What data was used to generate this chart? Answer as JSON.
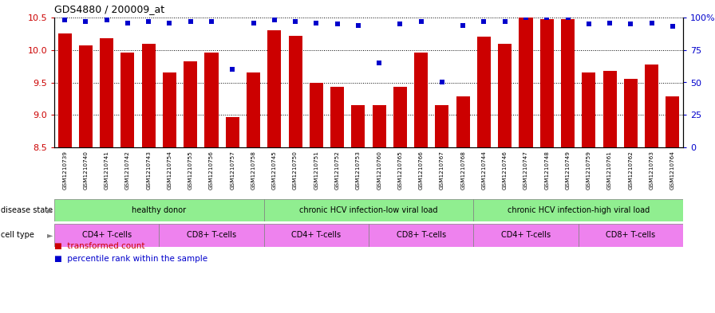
{
  "title": "GDS4880 / 200009_at",
  "samples": [
    "GSM1210739",
    "GSM1210740",
    "GSM1210741",
    "GSM1210742",
    "GSM1210743",
    "GSM1210754",
    "GSM1210755",
    "GSM1210756",
    "GSM1210757",
    "GSM1210758",
    "GSM1210745",
    "GSM1210750",
    "GSM1210751",
    "GSM1210752",
    "GSM1210753",
    "GSM1210760",
    "GSM1210765",
    "GSM1210766",
    "GSM1210767",
    "GSM1210768",
    "GSM1210744",
    "GSM1210746",
    "GSM1210747",
    "GSM1210748",
    "GSM1210749",
    "GSM1210759",
    "GSM1210761",
    "GSM1210762",
    "GSM1210763",
    "GSM1210764"
  ],
  "bar_values": [
    10.25,
    10.07,
    10.18,
    9.96,
    10.1,
    9.65,
    9.83,
    9.96,
    8.97,
    9.65,
    10.3,
    10.22,
    9.5,
    9.43,
    9.15,
    9.15,
    9.43,
    9.96,
    9.15,
    9.28,
    10.2,
    10.1,
    10.5,
    10.48,
    10.48,
    9.65,
    9.68,
    9.55,
    9.78,
    9.28
  ],
  "percentile_values": [
    98,
    97,
    98,
    96,
    97,
    96,
    97,
    97,
    60,
    96,
    98,
    97,
    96,
    95,
    94,
    65,
    95,
    97,
    50,
    94,
    97,
    97,
    100,
    100,
    100,
    95,
    96,
    95,
    96,
    93
  ],
  "bar_color": "#CC0000",
  "dot_color": "#0000CC",
  "ylim_left": [
    8.5,
    10.5
  ],
  "ylim_right": [
    0,
    100
  ],
  "yticks_left": [
    8.5,
    9.0,
    9.5,
    10.0,
    10.5
  ],
  "yticks_right": [
    0,
    25,
    50,
    75,
    100
  ],
  "disease_groups": [
    {
      "label": "healthy donor",
      "start": 0,
      "end": 10
    },
    {
      "label": "chronic HCV infection-low viral load",
      "start": 10,
      "end": 20
    },
    {
      "label": "chronic HCV infection-high viral load",
      "start": 20,
      "end": 30
    }
  ],
  "cell_groups": [
    {
      "label": "CD4+ T-cells",
      "start": 0,
      "end": 5
    },
    {
      "label": "CD8+ T-cells",
      "start": 5,
      "end": 10
    },
    {
      "label": "CD4+ T-cells",
      "start": 10,
      "end": 15
    },
    {
      "label": "CD8+ T-cells",
      "start": 15,
      "end": 20
    },
    {
      "label": "CD4+ T-cells",
      "start": 20,
      "end": 25
    },
    {
      "label": "CD8+ T-cells",
      "start": 25,
      "end": 30
    }
  ],
  "disease_color": "#90EE90",
  "cell_color": "#EE82EE",
  "xtick_bg": "#C8C8C8",
  "legend_count_label": "transformed count",
  "legend_pct_label": "percentile rank within the sample",
  "fig_width": 8.96,
  "fig_height": 3.93,
  "dpi": 100
}
